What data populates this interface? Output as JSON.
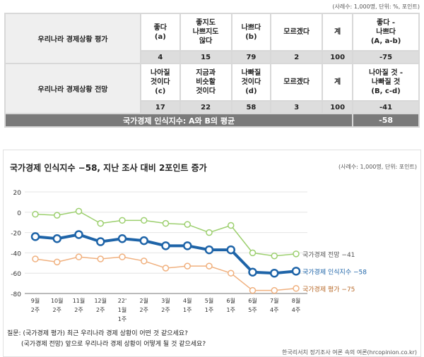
{
  "table": {
    "note": "(사례수: 1,000명, 단위: %, 포인트)",
    "row1": {
      "label": "우리나라 경제상황 평가",
      "headers": [
        "좋다\n(a)",
        "좋지도\n나쁘지도\n않다",
        "나쁘다\n(b)",
        "모르겠다",
        "계",
        "좋다 -\n나쁘다\n(A, a-b)"
      ],
      "values": [
        "4",
        "15",
        "79",
        "2",
        "100",
        "-75"
      ]
    },
    "row2": {
      "label": "우리나라 경제상황 전망",
      "headers": [
        "나아질\n것이다\n(c)",
        "지금과\n비슷할\n것이다",
        "나빠질\n것이다\n(d)",
        "모르겠다",
        "계",
        "나아질 것 -\n나빠질 것\n(B, c-d)"
      ],
      "values": [
        "17",
        "22",
        "58",
        "3",
        "100",
        "-41"
      ]
    },
    "footer": {
      "label": "국가경제 인식지수: A와 B의 평균",
      "value": "-58"
    }
  },
  "chart_data": {
    "type": "line",
    "title": "국가경제 인식지수 −58, 지난 조사 대비 2포인트 증가",
    "note": "(사례수: 1,000명, 단위: 포인트)",
    "categories": [
      "9월\n2주",
      "10월\n2주",
      "11월\n2주",
      "12월\n2주",
      "22'\n1월\n1주",
      "2월\n2주",
      "3월\n2주",
      "4월\n1주",
      "5월\n1주",
      "6월\n1주",
      "6월\n5주",
      "7월\n4주",
      "8월\n4주"
    ],
    "yticks": [
      "20",
      "0",
      "-20",
      "-40",
      "-60",
      "-80"
    ],
    "ylim": [
      -80,
      20
    ],
    "series": [
      {
        "name": "국가경제 전망",
        "label": "국가경제 전망 −41",
        "color": "#9ccf6e",
        "label_color": "#555",
        "values": [
          -2,
          -3,
          1,
          -11,
          -8,
          -8,
          -11,
          -12,
          -20,
          -13,
          -40,
          -43,
          -41
        ]
      },
      {
        "name": "국가경제 인식지수",
        "label": "국가경제 인식지수 −58",
        "color": "#1e64a8",
        "label_color": "#1e64a8",
        "values": [
          -24,
          -26,
          -22,
          -29,
          -26,
          -28,
          -33,
          -33,
          -37,
          -37,
          -59,
          -60,
          -58
        ]
      },
      {
        "name": "국가경제 평가",
        "label": "국가경제 평가 −75",
        "color": "#f0b07e",
        "label_color": "#b86a2a",
        "values": [
          -46,
          -49,
          -44,
          -46,
          -44,
          -48,
          -55,
          -53,
          -53,
          -60,
          -77,
          -77,
          -75
        ]
      }
    ]
  },
  "footer": {
    "q1": "질문: (국가경제 평가) 최근 우리나라 경제 상황이 어떤 것 같으세요?",
    "q2": "(국가경제 전망) 앞으로 우리나라 경제 상황이 어떻게 될 것 같으세요?",
    "source": "한국리서치 정기조사 여론 속의 여론(hrcopinion.co.kr)"
  }
}
